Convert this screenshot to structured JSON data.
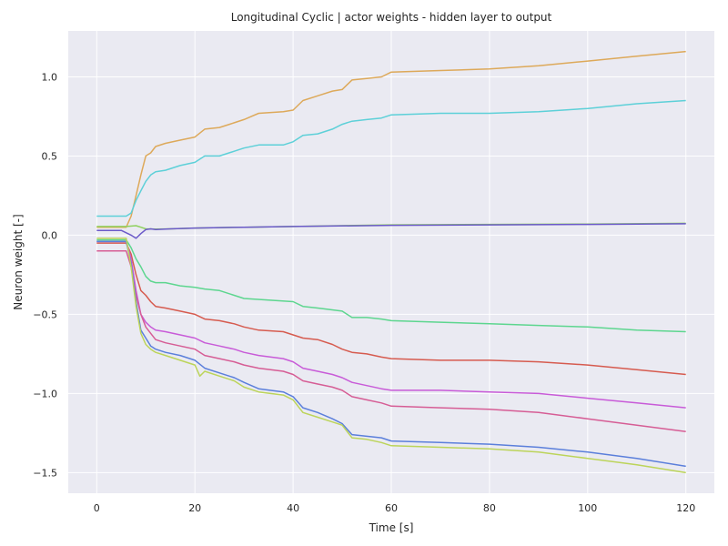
{
  "chart_data": {
    "type": "line",
    "title": "Longitudinal Cyclic | actor weights - hidden layer to output",
    "xlabel": "Time [s]",
    "ylabel": "Neuron weight [-]",
    "xlim": [
      -5.8,
      125.8
    ],
    "ylim": [
      -1.63,
      1.29
    ],
    "xticks": [
      0,
      20,
      40,
      60,
      80,
      100,
      120
    ],
    "yticks": [
      -1.5,
      -1.0,
      -0.5,
      0.0,
      0.5,
      1.0
    ],
    "ytick_labels": [
      "−1.5",
      "−1.0",
      "−0.5",
      "0.0",
      "0.5",
      "1.0"
    ],
    "grid": true,
    "background": "#eaeaf2",
    "series": [
      {
        "color": "#dda95a",
        "x": [
          0,
          6,
          7,
          8,
          9,
          10,
          11,
          12,
          14,
          17,
          20,
          22,
          25,
          28,
          30,
          33,
          38,
          40,
          42,
          45,
          48,
          50,
          52,
          55,
          58,
          60,
          70,
          80,
          90,
          100,
          110,
          120
        ],
        "y": [
          0.05,
          0.05,
          0.12,
          0.25,
          0.38,
          0.5,
          0.52,
          0.56,
          0.58,
          0.6,
          0.62,
          0.67,
          0.68,
          0.71,
          0.73,
          0.77,
          0.78,
          0.79,
          0.85,
          0.88,
          0.91,
          0.92,
          0.98,
          0.99,
          1.0,
          1.03,
          1.04,
          1.05,
          1.07,
          1.1,
          1.13,
          1.16
        ]
      },
      {
        "color": "#5dd0d8",
        "x": [
          0,
          6,
          7,
          8,
          9,
          10,
          11,
          12,
          14,
          17,
          20,
          22,
          25,
          28,
          30,
          33,
          38,
          40,
          42,
          45,
          48,
          50,
          52,
          55,
          58,
          60,
          70,
          80,
          90,
          100,
          110,
          120
        ],
        "y": [
          0.12,
          0.12,
          0.14,
          0.22,
          0.28,
          0.34,
          0.38,
          0.4,
          0.41,
          0.44,
          0.46,
          0.5,
          0.5,
          0.53,
          0.55,
          0.57,
          0.57,
          0.59,
          0.63,
          0.64,
          0.67,
          0.7,
          0.72,
          0.73,
          0.74,
          0.76,
          0.77,
          0.77,
          0.78,
          0.8,
          0.83,
          0.85
        ]
      },
      {
        "color": "#8fd15e",
        "x": [
          0,
          6,
          8,
          9,
          10,
          12,
          15,
          20,
          30,
          40,
          60,
          80,
          100,
          120
        ],
        "y": [
          0.055,
          0.055,
          0.06,
          0.05,
          0.04,
          0.038,
          0.04,
          0.045,
          0.05,
          0.055,
          0.065,
          0.068,
          0.07,
          0.075
        ]
      },
      {
        "color": "#6b5ac9",
        "x": [
          0,
          5,
          7,
          8,
          9,
          10,
          11,
          12,
          15,
          20,
          30,
          40,
          60,
          80,
          100,
          120
        ],
        "y": [
          0.03,
          0.03,
          0.0,
          -0.02,
          0.01,
          0.035,
          0.04,
          0.035,
          0.04,
          0.045,
          0.05,
          0.055,
          0.062,
          0.065,
          0.068,
          0.072
        ]
      },
      {
        "color": "#5dd68f",
        "x": [
          0,
          6,
          7,
          8,
          9,
          10,
          11,
          12,
          14,
          17,
          20,
          22,
          25,
          30,
          35,
          40,
          42,
          45,
          50,
          52,
          55,
          58,
          60,
          70,
          80,
          90,
          100,
          110,
          120
        ],
        "y": [
          -0.03,
          -0.03,
          -0.08,
          -0.15,
          -0.2,
          -0.26,
          -0.29,
          -0.3,
          -0.3,
          -0.32,
          -0.33,
          -0.34,
          -0.35,
          -0.4,
          -0.41,
          -0.42,
          -0.45,
          -0.46,
          -0.48,
          -0.52,
          -0.52,
          -0.53,
          -0.54,
          -0.55,
          -0.56,
          -0.57,
          -0.58,
          -0.6,
          -0.61
        ]
      },
      {
        "color": "#d65b4f",
        "x": [
          0,
          6,
          7,
          8,
          9,
          10,
          11,
          12,
          14,
          17,
          20,
          22,
          25,
          28,
          30,
          33,
          38,
          40,
          42,
          45,
          48,
          50,
          52,
          55,
          58,
          60,
          70,
          80,
          90,
          100,
          110,
          120
        ],
        "y": [
          -0.05,
          -0.05,
          -0.12,
          -0.25,
          -0.35,
          -0.38,
          -0.42,
          -0.45,
          -0.46,
          -0.48,
          -0.5,
          -0.53,
          -0.54,
          -0.56,
          -0.58,
          -0.6,
          -0.61,
          -0.63,
          -0.65,
          -0.66,
          -0.69,
          -0.72,
          -0.74,
          -0.75,
          -0.77,
          -0.78,
          -0.79,
          -0.79,
          -0.8,
          -0.82,
          -0.85,
          -0.88
        ]
      },
      {
        "color": "#c85bd8",
        "x": [
          0,
          6,
          7,
          8,
          9,
          10,
          11,
          12,
          14,
          17,
          20,
          22,
          25,
          28,
          30,
          33,
          38,
          40,
          42,
          45,
          48,
          50,
          52,
          55,
          58,
          60,
          70,
          80,
          90,
          100,
          110,
          120
        ],
        "y": [
          -0.04,
          -0.04,
          -0.15,
          -0.35,
          -0.5,
          -0.55,
          -0.58,
          -0.6,
          -0.61,
          -0.63,
          -0.65,
          -0.68,
          -0.7,
          -0.72,
          -0.74,
          -0.76,
          -0.78,
          -0.8,
          -0.84,
          -0.86,
          -0.88,
          -0.9,
          -0.93,
          -0.95,
          -0.97,
          -0.98,
          -0.98,
          -0.99,
          -1.0,
          -1.03,
          -1.06,
          -1.09
        ]
      },
      {
        "color": "#d65d95",
        "x": [
          0,
          6,
          7,
          8,
          9,
          10,
          11,
          12,
          14,
          17,
          20,
          22,
          25,
          28,
          30,
          33,
          38,
          40,
          42,
          45,
          48,
          50,
          52,
          55,
          58,
          60,
          70,
          80,
          90,
          100,
          110,
          120
        ],
        "y": [
          -0.1,
          -0.1,
          -0.2,
          -0.38,
          -0.5,
          -0.58,
          -0.62,
          -0.66,
          -0.68,
          -0.7,
          -0.72,
          -0.76,
          -0.78,
          -0.8,
          -0.82,
          -0.84,
          -0.86,
          -0.88,
          -0.92,
          -0.94,
          -0.96,
          -0.98,
          -1.02,
          -1.04,
          -1.06,
          -1.08,
          -1.09,
          -1.1,
          -1.12,
          -1.16,
          -1.2,
          -1.24
        ]
      },
      {
        "color": "#5b7fdb",
        "x": [
          0,
          6,
          7,
          8,
          9,
          10,
          11,
          12,
          14,
          17,
          20,
          22,
          25,
          28,
          30,
          33,
          38,
          40,
          42,
          45,
          48,
          50,
          52,
          55,
          58,
          60,
          70,
          80,
          90,
          100,
          110,
          120
        ],
        "y": [
          -0.04,
          -0.04,
          -0.18,
          -0.42,
          -0.6,
          -0.65,
          -0.7,
          -0.72,
          -0.74,
          -0.76,
          -0.79,
          -0.84,
          -0.87,
          -0.9,
          -0.93,
          -0.97,
          -0.99,
          -1.02,
          -1.09,
          -1.12,
          -1.16,
          -1.19,
          -1.26,
          -1.27,
          -1.28,
          -1.3,
          -1.31,
          -1.32,
          -1.34,
          -1.37,
          -1.41,
          -1.46
        ]
      },
      {
        "color": "#bcd45a",
        "x": [
          0,
          6,
          7,
          8,
          9,
          10,
          11,
          12,
          14,
          17,
          20,
          21,
          22,
          25,
          28,
          30,
          33,
          38,
          40,
          42,
          45,
          48,
          50,
          52,
          55,
          58,
          60,
          70,
          80,
          90,
          100,
          110,
          120
        ],
        "y": [
          -0.02,
          -0.02,
          -0.2,
          -0.45,
          -0.62,
          -0.69,
          -0.72,
          -0.74,
          -0.76,
          -0.79,
          -0.82,
          -0.89,
          -0.86,
          -0.89,
          -0.92,
          -0.96,
          -0.99,
          -1.01,
          -1.04,
          -1.12,
          -1.15,
          -1.18,
          -1.2,
          -1.28,
          -1.29,
          -1.31,
          -1.33,
          -1.34,
          -1.35,
          -1.37,
          -1.41,
          -1.45,
          -1.5
        ]
      }
    ]
  }
}
